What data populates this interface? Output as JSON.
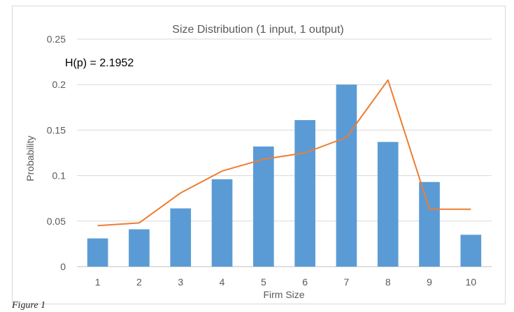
{
  "caption": "Figure 1",
  "chart_data": {
    "type": "bar",
    "title": "Size Distribution (1 input, 1 output)",
    "annotation": "H(p) = 2.1952",
    "xlabel": "Firm Size",
    "ylabel": "Probability",
    "categories": [
      "1",
      "2",
      "3",
      "4",
      "5",
      "6",
      "7",
      "8",
      "9",
      "10"
    ],
    "ylim": [
      0,
      0.25
    ],
    "yticks": [
      "0",
      "0.05",
      "0.1",
      "0.15",
      "0.2",
      "0.25"
    ],
    "grid": true,
    "series": [
      {
        "type": "bar",
        "values": [
          0.031,
          0.041,
          0.064,
          0.096,
          0.132,
          0.161,
          0.2,
          0.137,
          0.093,
          0.035
        ],
        "color": "#5b9bd5"
      },
      {
        "type": "line",
        "values": [
          0.045,
          0.048,
          0.081,
          0.105,
          0.118,
          0.125,
          0.142,
          0.205,
          0.063,
          0.063
        ],
        "color": "#ed7d31"
      }
    ]
  }
}
